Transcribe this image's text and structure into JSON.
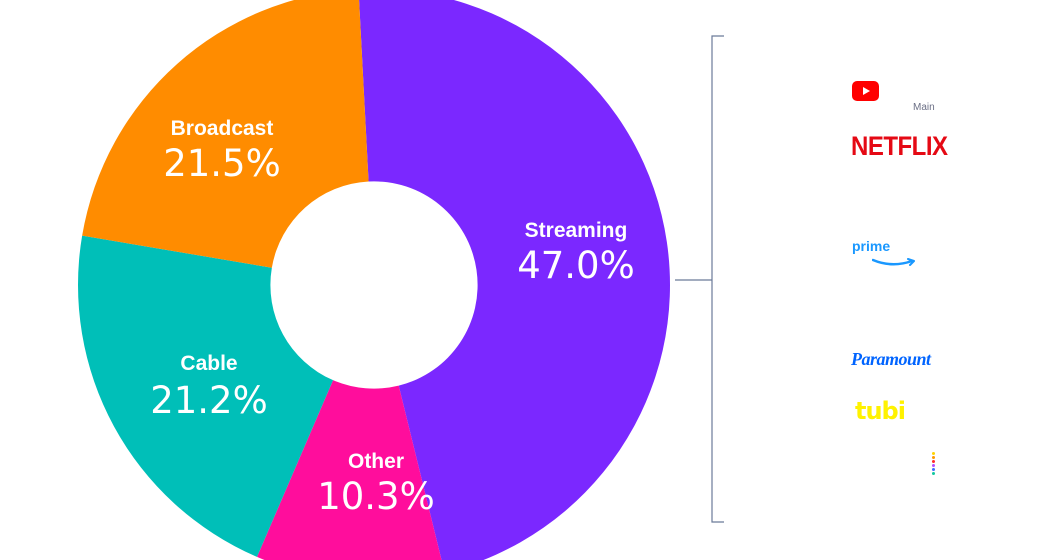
{
  "chart_data": {
    "type": "donut",
    "title": "",
    "slices": [
      {
        "label": "Streaming",
        "value": 47.0,
        "display": "47.0%",
        "color": "#7b28ff"
      },
      {
        "label": "Other",
        "value": 10.3,
        "display": "10.3%",
        "color": "#ff0d9c"
      },
      {
        "label": "Cable",
        "value": 21.2,
        "display": "21.2%",
        "color": "#00bfb8"
      },
      {
        "label": "Broadcast",
        "value": 21.5,
        "display": "21.5%",
        "color": "#ff8c00"
      }
    ],
    "start_angle_deg": -3,
    "direction": "clockwise",
    "hole_ratio": 0.35,
    "callout_bracket_color": "#6b7a99"
  },
  "logos": {
    "youtube": {
      "name": "youtube-icon",
      "color": "#ff0000"
    },
    "main_label": "Main",
    "netflix": {
      "text": "NETFLIX",
      "color": "#e50914"
    },
    "prime": {
      "text": "prime",
      "color": "#1a98ff"
    },
    "paramount": {
      "text": "Paramount",
      "color": "#0064ff"
    },
    "tubi": {
      "text": "tubi",
      "color": "#fff200"
    },
    "peacock": {
      "name": "peacock-icon",
      "dot_colors": [
        "#ffd400",
        "#ff9a00",
        "#ff2a2a",
        "#b44dff",
        "#3c6bff",
        "#14c8a0"
      ]
    }
  }
}
